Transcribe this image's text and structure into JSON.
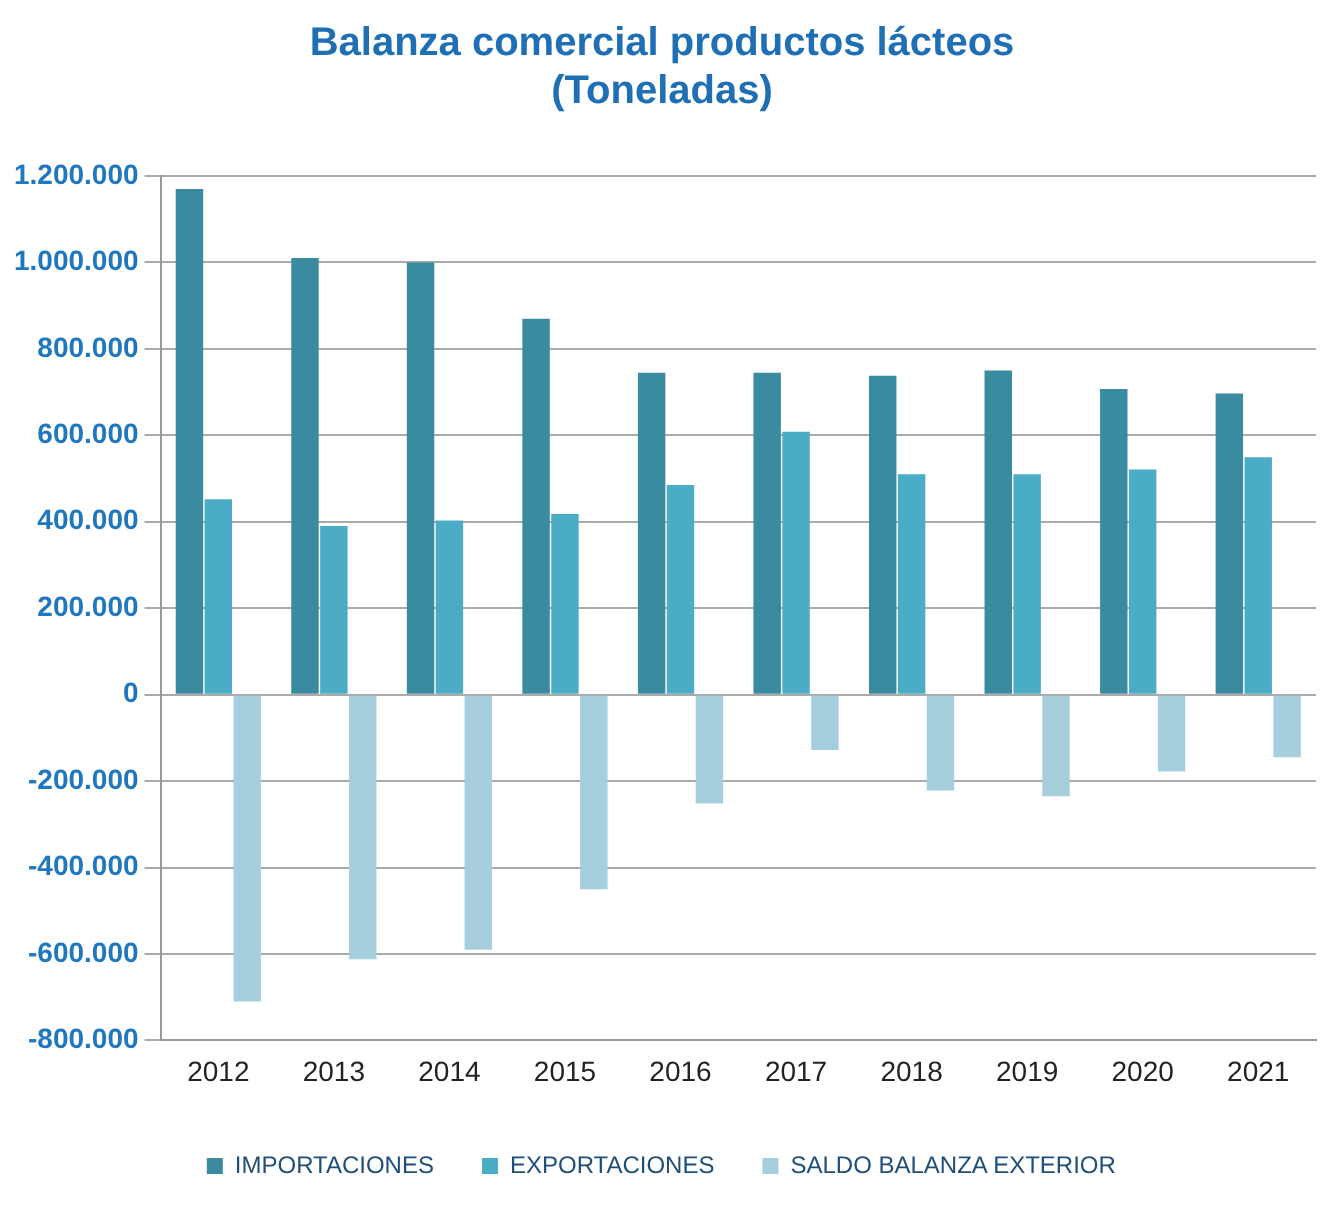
{
  "chart_data": {
    "type": "bar",
    "title": "Balanza comercial productos lácteos\n(Toneladas)",
    "categories": [
      "2012",
      "2013",
      "2014",
      "2015",
      "2016",
      "2017",
      "2018",
      "2019",
      "2020",
      "2021"
    ],
    "series": [
      {
        "name": "IMPORTACIONES",
        "color": "#3a8aa0",
        "values": [
          1170000,
          1010000,
          1000000,
          870000,
          745000,
          745000,
          738000,
          750000,
          707000,
          697000
        ]
      },
      {
        "name": "EXPORTACIONES",
        "color": "#4bacc6",
        "values": [
          452000,
          390000,
          403000,
          418000,
          485000,
          608000,
          510000,
          510000,
          521000,
          549000
        ]
      },
      {
        "name": "SALDO BALANZA EXTERIOR",
        "color": "#a5cfdc",
        "values": [
          -710000,
          -612000,
          -590000,
          -450000,
          -252000,
          -128000,
          -222000,
          -235000,
          -178000,
          -145000
        ]
      }
    ],
    "ylim": [
      -800000,
      1200000
    ],
    "yticks": [
      {
        "value": -800000,
        "label": "-800.000"
      },
      {
        "value": -600000,
        "label": "-600.000"
      },
      {
        "value": -400000,
        "label": "-400.000"
      },
      {
        "value": -200000,
        "label": "-200.000"
      },
      {
        "value": 0,
        "label": "0"
      },
      {
        "value": 200000,
        "label": "200.000"
      },
      {
        "value": 400000,
        "label": "400.000"
      },
      {
        "value": 600000,
        "label": "600.000"
      },
      {
        "value": 800000,
        "label": "800.000"
      },
      {
        "value": 1000000,
        "label": "1.000.000"
      },
      {
        "value": 1200000,
        "label": "1.200.000"
      }
    ],
    "grid": "y",
    "legend": "bottom"
  }
}
